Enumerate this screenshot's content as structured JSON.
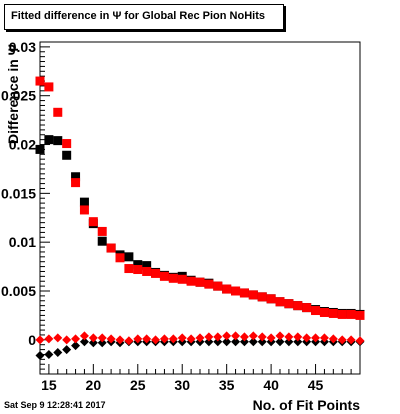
{
  "title": "Fitted difference in  Ψ  for Global Rec Pion NoHits",
  "timestamp": "Sat Sep  9 12:28:41 2017",
  "chart_data": {
    "type": "scatter",
    "title": "Fitted difference in  Ψ  for Global Rec Pion NoHits",
    "xlabel": "No. of Fit Points",
    "ylabel": "Difference in Ψ",
    "xlim": [
      14,
      50
    ],
    "ylim": [
      -0.0035,
      0.0305
    ],
    "xticks": [
      15,
      20,
      25,
      30,
      35,
      40,
      45
    ],
    "xtick_labels": [
      "15",
      "20",
      "25",
      "30",
      "35",
      "40",
      "45"
    ],
    "yticks": [
      0,
      0.005,
      0.01,
      0.015,
      0.02,
      0.025,
      0.03
    ],
    "ytick_labels": [
      "0",
      "0.005",
      "0.01",
      "0.015",
      "0.02",
      "0.025",
      "0.03"
    ],
    "grid": false,
    "series": [
      {
        "marker": "square",
        "color": "#000000",
        "x": [
          14,
          15,
          16,
          17,
          18,
          19,
          20,
          21,
          22,
          23,
          24,
          25,
          26,
          27,
          28,
          29,
          30,
          31,
          32,
          33,
          34,
          35,
          36,
          37,
          38,
          39,
          40,
          41,
          42,
          43,
          44,
          45,
          46,
          47,
          48,
          49,
          50
        ],
        "y": [
          0.0195,
          0.0205,
          0.0204,
          0.0189,
          0.0167,
          0.0141,
          0.0119,
          0.0101,
          0.0094,
          0.0087,
          0.0085,
          0.0077,
          0.0076,
          0.0069,
          0.0066,
          0.0064,
          0.0065,
          0.0061,
          0.0059,
          0.0058,
          0.0055,
          0.0052,
          0.005,
          0.0048,
          0.0046,
          0.0044,
          0.0042,
          0.0039,
          0.0037,
          0.0035,
          0.0033,
          0.0031,
          0.0029,
          0.0028,
          0.0027,
          0.0027,
          0.0026
        ]
      },
      {
        "marker": "square",
        "color": "#ff0000",
        "x": [
          14,
          15,
          16,
          17,
          18,
          19,
          20,
          21,
          22,
          23,
          24,
          25,
          26,
          27,
          28,
          29,
          30,
          31,
          32,
          33,
          34,
          35,
          36,
          37,
          38,
          39,
          40,
          41,
          42,
          43,
          44,
          45,
          46,
          47,
          48,
          49,
          50
        ],
        "y": [
          0.0265,
          0.0259,
          0.0233,
          0.0201,
          0.0161,
          0.0133,
          0.0121,
          0.0111,
          0.0094,
          0.0084,
          0.0073,
          0.0072,
          0.007,
          0.0068,
          0.0065,
          0.0063,
          0.0062,
          0.006,
          0.0059,
          0.0057,
          0.0055,
          0.0052,
          0.005,
          0.0048,
          0.0046,
          0.0044,
          0.0042,
          0.0039,
          0.0037,
          0.0035,
          0.0033,
          0.003,
          0.0028,
          0.0027,
          0.0026,
          0.0026,
          0.0025
        ]
      },
      {
        "marker": "diamond",
        "color": "#000000",
        "x": [
          14,
          15,
          16,
          17,
          18,
          19,
          20,
          21,
          22,
          23,
          24,
          25,
          26,
          27,
          28,
          29,
          30,
          31,
          32,
          33,
          34,
          35,
          36,
          37,
          38,
          39,
          40,
          41,
          42,
          43,
          44,
          45,
          46,
          47,
          48,
          49,
          50
        ],
        "y": [
          -0.0016,
          -0.0015,
          -0.0013,
          -0.001,
          -0.0006,
          -0.0002,
          -0.0003,
          -0.0003,
          -0.0002,
          -0.0003,
          -0.0002,
          -0.0002,
          -0.0002,
          -0.0002,
          -0.0002,
          -0.0002,
          -0.0002,
          -0.0002,
          -0.0002,
          -0.0002,
          -0.0002,
          -0.0002,
          -0.0002,
          -0.0002,
          -0.0002,
          -0.0002,
          -0.0002,
          -0.0002,
          -0.0002,
          -0.0002,
          -0.0002,
          -0.0002,
          -0.0002,
          -0.0002,
          -0.0002,
          -0.0002,
          -0.0002
        ]
      },
      {
        "marker": "diamond",
        "color": "#ff0000",
        "x": [
          14,
          15,
          16,
          17,
          18,
          19,
          20,
          21,
          22,
          23,
          24,
          25,
          26,
          27,
          28,
          29,
          30,
          31,
          32,
          33,
          34,
          35,
          36,
          37,
          38,
          39,
          40,
          41,
          42,
          43,
          44,
          45,
          46,
          47,
          48,
          49,
          50
        ],
        "y": [
          0.0,
          0.0001,
          0.0002,
          0.0,
          0.0001,
          0.0004,
          0.0002,
          0.0002,
          0.0001,
          0.0,
          -0.0001,
          0.0001,
          0.0001,
          0.0,
          0.0001,
          0.0001,
          0.0002,
          0.0001,
          0.0002,
          0.0003,
          0.0003,
          0.0004,
          0.0004,
          0.0003,
          0.0004,
          0.0003,
          0.0002,
          0.0004,
          0.0003,
          0.0003,
          0.0002,
          0.0002,
          0.0002,
          0.0001,
          0.0,
          0.0,
          -0.0001
        ]
      }
    ]
  }
}
